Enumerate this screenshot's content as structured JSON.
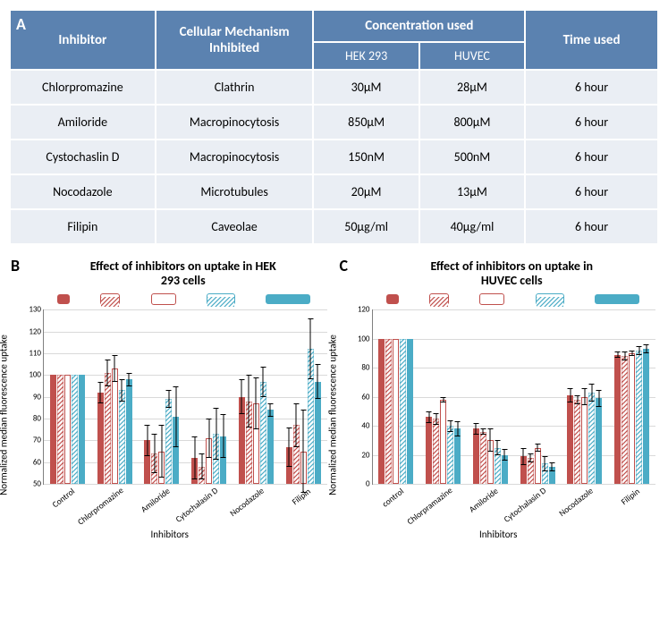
{
  "panel_labels": {
    "A": "A",
    "B": "B",
    "C": "C"
  },
  "table": {
    "headers": {
      "inhibitor": "Inhibitor",
      "mechanism": "Cellular Mechanism Inhibited",
      "concentration": "Concentration used",
      "hek": "HEK 293",
      "huvec": "HUVEC",
      "time": "Time used"
    },
    "rows": [
      {
        "inhibitor": "Chlorpromazine",
        "mechanism": "Clathrin",
        "hek": "30μM",
        "huvec": "28μM",
        "time": "6 hour"
      },
      {
        "inhibitor": "Amiloride",
        "mechanism": "Macropinocytosis",
        "hek": "850μM",
        "huvec": "800μM",
        "time": "6 hour"
      },
      {
        "inhibitor": "Cystochaslin D",
        "mechanism": "Macropinocytosis",
        "hek": "150nM",
        "huvec": "500nM",
        "time": "6 hour"
      },
      {
        "inhibitor": "Nocodazole",
        "mechanism": "Microtubules",
        "hek": "20μM",
        "huvec": "13μM",
        "time": "6 hour"
      },
      {
        "inhibitor": "Filipin",
        "mechanism": "Caveolae",
        "hek": "50μg/ml",
        "huvec": "40μg/ml",
        "time": "6 hour"
      }
    ],
    "header_bg": "#5b82b0",
    "header_fg": "#ffffff",
    "cell_bg": "#eaeef4"
  },
  "series_styles": [
    {
      "name": "s1",
      "fill": "#c0504d",
      "hatch": false,
      "outlined": false
    },
    {
      "name": "s2",
      "fill": "#ffffff",
      "hatch": "#c0504d",
      "outlined": "#c0504d"
    },
    {
      "name": "s3",
      "fill": "#ffffff",
      "hatch": false,
      "outlined": "#c0504d"
    },
    {
      "name": "s4",
      "fill": "#ffffff",
      "hatch": "#4bacc6",
      "outlined": "#4bacc6"
    },
    {
      "name": "s5",
      "fill": "#4bacc6",
      "hatch": false,
      "outlined": false
    }
  ],
  "legend_widths": [
    14,
    20,
    26,
    30,
    50
  ],
  "chartB": {
    "title_line1": "Effect of inhibitors on uptake in HEK",
    "title_line2": "293 cells",
    "ylabel": "Normalized median fluorescence uptake",
    "xlabel": "Inhibitors",
    "ylim": [
      50,
      130
    ],
    "ytick_step": 10,
    "grid_color": "#d9d9d9",
    "categories": [
      "Control",
      "Chlorpromazine",
      "Amiloride",
      "Cytochalasin D",
      "Nocodazole",
      "Filipin"
    ],
    "data": [
      {
        "v": [
          100,
          100,
          100,
          100,
          100
        ],
        "e": [
          0,
          0,
          0,
          0,
          0
        ]
      },
      {
        "v": [
          92,
          101,
          103,
          93,
          98
        ],
        "e": [
          5,
          6,
          6,
          5,
          3
        ]
      },
      {
        "v": [
          70,
          64,
          65,
          89,
          81
        ],
        "e": [
          7,
          9,
          12,
          4,
          14
        ]
      },
      {
        "v": [
          62,
          58,
          71,
          73,
          72
        ],
        "e": [
          10,
          6,
          9,
          12,
          10
        ]
      },
      {
        "v": [
          90,
          88,
          87,
          97,
          84
        ],
        "e": [
          8,
          12,
          12,
          7,
          3
        ]
      },
      {
        "v": [
          67,
          77,
          65,
          112,
          97
        ],
        "e": [
          9,
          10,
          19,
          14,
          8
        ]
      }
    ]
  },
  "chartC": {
    "title_line1": "Effect of inhibitors on uptake in",
    "title_line2": "HUVEC cells",
    "ylabel": "Normalized median fluorescence uptake",
    "xlabel": "Inhibitors",
    "ylim": [
      0,
      120
    ],
    "ytick_step": 20,
    "grid_color": "#d9d9d9",
    "categories": [
      "control",
      "Chlorpramazine",
      "Amiloride",
      "Cytochalasin D",
      "Nocodazole",
      "Filipin"
    ],
    "data": [
      {
        "v": [
          100,
          100,
          100,
          100,
          100
        ],
        "e": [
          0,
          0,
          0,
          0,
          0
        ]
      },
      {
        "v": [
          46,
          45,
          58,
          40,
          38
        ],
        "e": [
          4,
          4,
          2,
          4,
          5
        ]
      },
      {
        "v": [
          38,
          36,
          30,
          25,
          20
        ],
        "e": [
          4,
          2,
          8,
          5,
          4
        ]
      },
      {
        "v": [
          19,
          18,
          25,
          14,
          12
        ],
        "e": [
          6,
          3,
          3,
          5,
          3
        ]
      },
      {
        "v": [
          61,
          58,
          60,
          63,
          59
        ],
        "e": [
          5,
          3,
          6,
          6,
          6
        ]
      },
      {
        "v": [
          89,
          88,
          90,
          92,
          93
        ],
        "e": [
          2,
          3,
          2,
          3,
          3
        ]
      }
    ]
  }
}
